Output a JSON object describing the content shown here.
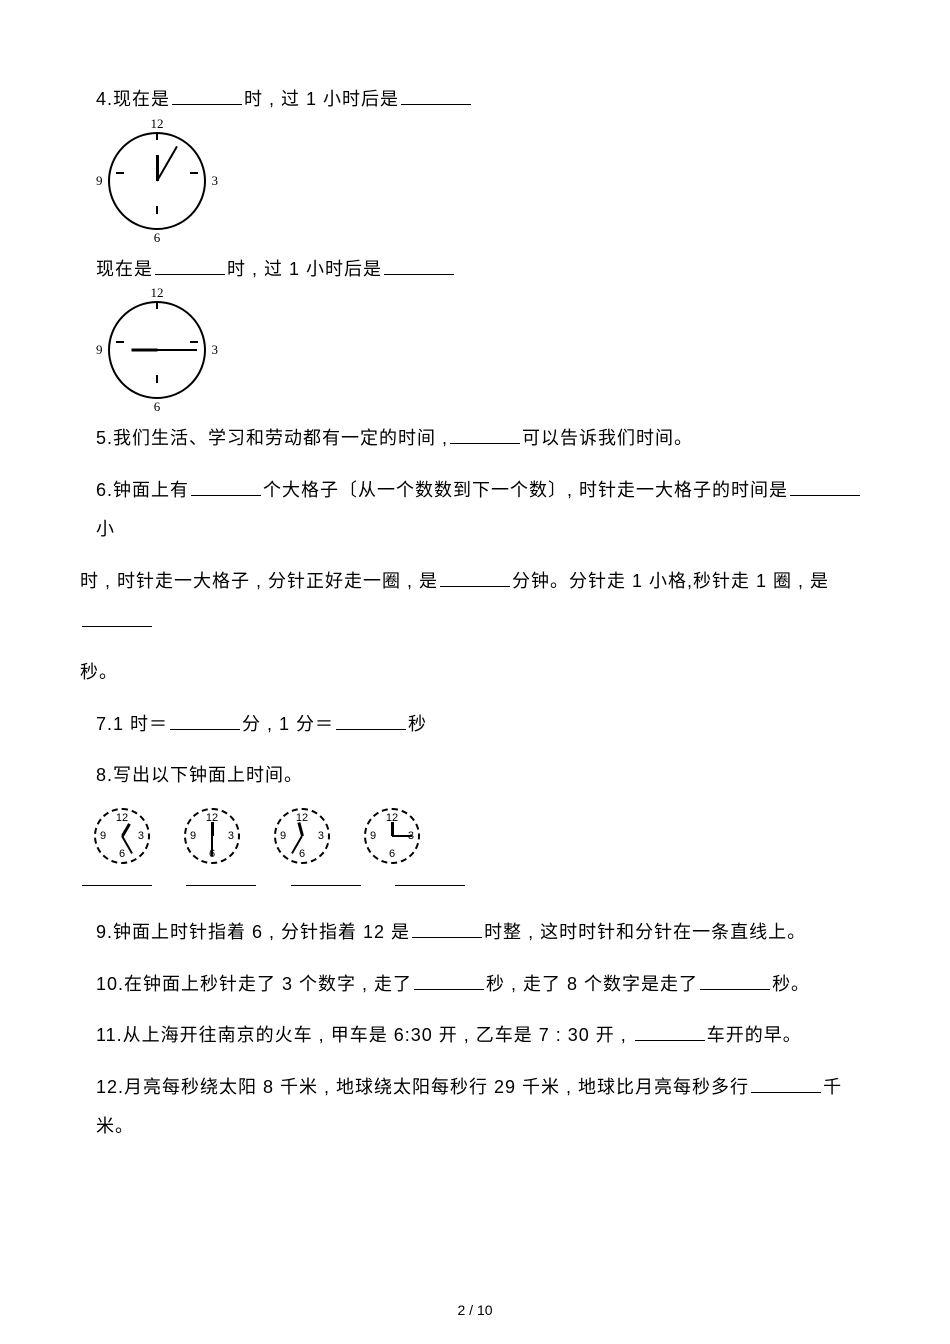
{
  "q4": {
    "line1_pre": "4.现在是",
    "line1_mid": "时 , 过 1 小时后是",
    "clock1": {
      "numbers": [
        "12",
        "3",
        "6",
        "9"
      ],
      "hour_angle": 360,
      "minute_angle": 30
    },
    "line2_pre": "现在是",
    "line2_mid": "时 , 过 1 小时后是",
    "clock2": {
      "numbers": [
        "12",
        "3",
        "6",
        "9"
      ],
      "hour_angle": 270,
      "minute_angle": 90
    }
  },
  "q5": {
    "pre": "5.我们生活、学习和劳动都有一定的时间 ,",
    "post": "可以告诉我们时间。"
  },
  "q6": {
    "p1_pre": "6.钟面上有",
    "p1_mid": "个大格子〔从一个数数到下一个数〕, 时针走一大格子的时间是",
    "p1_post": "小",
    "p2_pre": "时 , 时针走一大格子 , 分针正好走一圈 , 是",
    "p2_mid": "分钟。分针走 1 小格,秒针走 1 圈 , 是",
    "p3": "秒。"
  },
  "q7": {
    "pre": "7.1 时＝",
    "mid": "分 , 1 分＝",
    "post": "秒"
  },
  "q8": {
    "title": "8.写出以下钟面上时间。",
    "clocks": [
      {
        "hour_angle": 30,
        "minute_angle": 150
      },
      {
        "hour_angle": 360,
        "minute_angle": 180
      },
      {
        "hour_angle": 345,
        "minute_angle": 210
      },
      {
        "hour_angle": 0,
        "minute_angle": 90
      }
    ]
  },
  "q9": {
    "pre": "9.钟面上时针指着 6 , 分针指着 12 是",
    "post": "时整 , 这时时针和分针在一条直线上。"
  },
  "q10": {
    "pre": "10.在钟面上秒针走了 3 个数字 , 走了",
    "mid": "秒 , 走了 8 个数字是走了",
    "post": "秒。"
  },
  "q11": {
    "pre": "11.从上海开往南京的火车 , 甲车是 6:30 开 , 乙车是 7 : 30 开 , ",
    "post": "车开的早。"
  },
  "q12": {
    "pre": "12.月亮每秒绕太阳 8 千米 , 地球绕太阳每秒行 29 千米 , 地球比月亮每秒多行",
    "post": "千米。"
  },
  "page_number": "2 / 10",
  "colors": {
    "text": "#000000",
    "background": "#ffffff",
    "line": "#000000"
  }
}
